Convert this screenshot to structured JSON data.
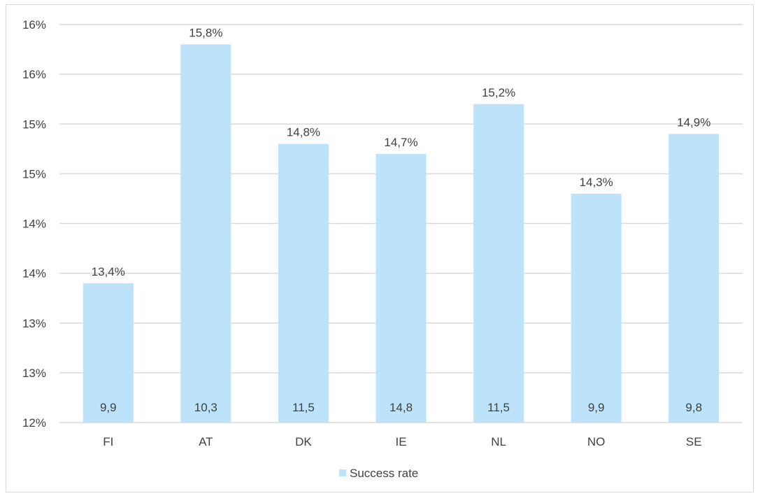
{
  "chart_data": {
    "type": "bar",
    "categories": [
      "FI",
      "AT",
      "DK",
      "IE",
      "NL",
      "NO",
      "SE"
    ],
    "series": [
      {
        "name": "Success rate",
        "values": [
          13.4,
          15.8,
          14.8,
          14.7,
          15.2,
          14.3,
          14.9
        ],
        "value_labels": [
          "13,4%",
          "15,8%",
          "14,8%",
          "14,7%",
          "15,2%",
          "14,3%",
          "14,9%"
        ],
        "inner_labels": [
          "9,9",
          "10,3",
          "11,5",
          "14,8",
          "11,5",
          "9,9",
          "9,8"
        ]
      }
    ],
    "y_tick_labels": [
      "12%",
      "13%",
      "13%",
      "14%",
      "14%",
      "15%",
      "15%",
      "16%",
      "16%"
    ],
    "ylim": [
      12,
      16
    ],
    "grid": true,
    "legend_position": "bottom",
    "colors": {
      "bar": "#bde3fb",
      "grid": "#d9d9d9",
      "text": "#404040"
    }
  }
}
